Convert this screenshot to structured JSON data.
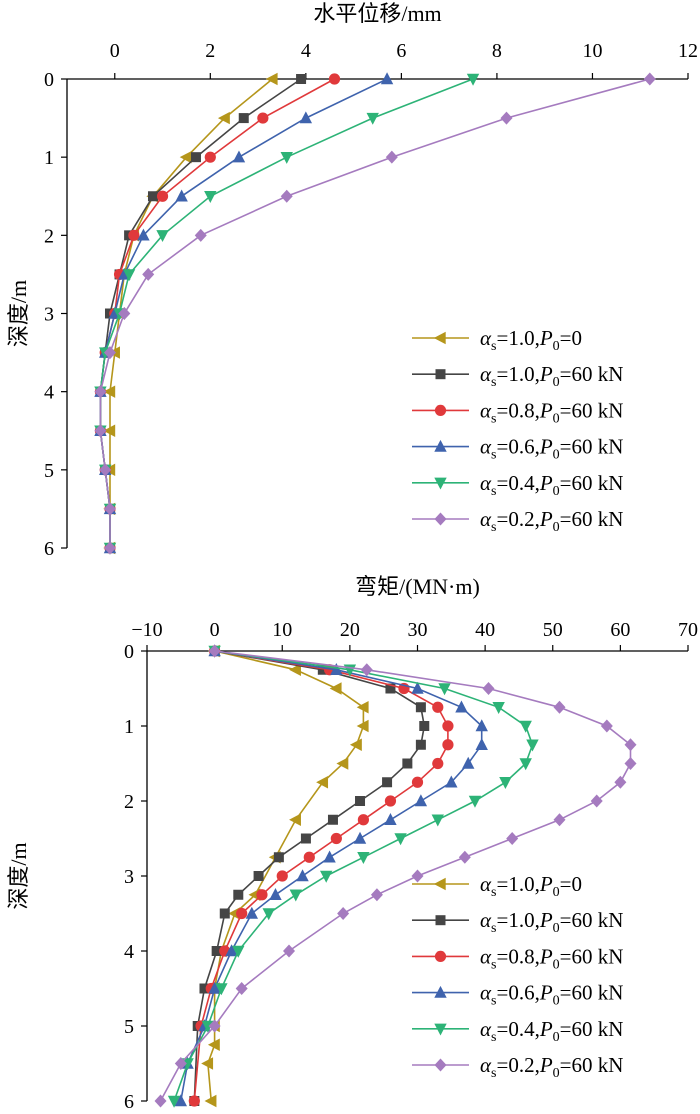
{
  "chart_data": [
    {
      "type": "line",
      "title": "水平位移/mm",
      "ylabel": "深度/m",
      "xlim": [
        -1,
        12
      ],
      "ylim": [
        6,
        0
      ],
      "y_inverted": true,
      "x_axis_position": "top",
      "xticks": [
        "0",
        "2",
        "4",
        "6",
        "8",
        "10",
        "12"
      ],
      "yticks": [
        "0",
        "1",
        "2",
        "3",
        "4",
        "5",
        "6"
      ],
      "legend_position": "bottom-right",
      "series": [
        {
          "name": "αs=1.0,P0=0",
          "name_parts": {
            "a": "α",
            "sa": "s",
            "mid": "=1.0,",
            "p": "P",
            "sp": "0",
            "tail": "=0"
          },
          "color": "#b5961b",
          "marker": "triangle-left",
          "x": [
            3.3,
            2.3,
            1.5,
            0.8,
            0.4,
            0.2,
            0.1,
            0.0,
            -0.1,
            -0.1,
            -0.1,
            -0.1,
            -0.1
          ],
          "y": [
            0,
            0.5,
            1.0,
            1.5,
            2.0,
            2.5,
            3.0,
            3.5,
            4.0,
            4.5,
            5.0,
            5.5,
            6.0
          ]
        },
        {
          "name": "αs=1.0,P0=60 kN",
          "name_parts": {
            "a": "α",
            "sa": "s",
            "mid": "=1.0,",
            "p": "P",
            "sp": "0",
            "tail": "=60 kN"
          },
          "color": "#454545",
          "marker": "square",
          "x": [
            3.9,
            2.7,
            1.7,
            0.8,
            0.3,
            0.1,
            -0.1,
            -0.2,
            -0.3,
            -0.3,
            -0.2,
            -0.1,
            -0.1
          ],
          "y": [
            0,
            0.5,
            1.0,
            1.5,
            2.0,
            2.5,
            3.0,
            3.5,
            4.0,
            4.5,
            5.0,
            5.5,
            6.0
          ]
        },
        {
          "name": "αs=0.8,P0=60 kN",
          "name_parts": {
            "a": "α",
            "sa": "s",
            "mid": "=0.8,",
            "p": "P",
            "sp": "0",
            "tail": "=60 kN"
          },
          "color": "#e0393b",
          "marker": "circle",
          "x": [
            4.6,
            3.1,
            2.0,
            1.0,
            0.4,
            0.1,
            0.0,
            -0.2,
            -0.3,
            -0.3,
            -0.2,
            -0.1,
            -0.1
          ],
          "y": [
            0,
            0.5,
            1.0,
            1.5,
            2.0,
            2.5,
            3.0,
            3.5,
            4.0,
            4.5,
            5.0,
            5.5,
            6.0
          ]
        },
        {
          "name": "αs=0.6,P0=60 kN",
          "name_parts": {
            "a": "α",
            "sa": "s",
            "mid": "=0.6,",
            "p": "P",
            "sp": "0",
            "tail": "=60 kN"
          },
          "color": "#3f63ad",
          "marker": "triangle-up",
          "x": [
            5.7,
            4.0,
            2.6,
            1.4,
            0.6,
            0.2,
            0.0,
            -0.2,
            -0.3,
            -0.3,
            -0.2,
            -0.1,
            -0.1
          ],
          "y": [
            0,
            0.5,
            1.0,
            1.5,
            2.0,
            2.5,
            3.0,
            3.5,
            4.0,
            4.5,
            5.0,
            5.5,
            6.0
          ]
        },
        {
          "name": "αs=0.4,P0=60 kN",
          "name_parts": {
            "a": "α",
            "sa": "s",
            "mid": "=0.4,",
            "p": "P",
            "sp": "0",
            "tail": "=60 kN"
          },
          "color": "#2db377",
          "marker": "triangle-down",
          "x": [
            7.5,
            5.4,
            3.6,
            2.0,
            1.0,
            0.3,
            0.1,
            -0.2,
            -0.3,
            -0.3,
            -0.2,
            -0.1,
            -0.1
          ],
          "y": [
            0,
            0.5,
            1.0,
            1.5,
            2.0,
            2.5,
            3.0,
            3.5,
            4.0,
            4.5,
            5.0,
            5.5,
            6.0
          ]
        },
        {
          "name": "αs=0.2,P0=60 kN",
          "name_parts": {
            "a": "α",
            "sa": "s",
            "mid": "=0.2,",
            "p": "P",
            "sp": "0",
            "tail": "=60 kN"
          },
          "color": "#a57bbf",
          "marker": "diamond",
          "x": [
            11.2,
            8.2,
            5.8,
            3.6,
            1.8,
            0.7,
            0.2,
            -0.1,
            -0.3,
            -0.3,
            -0.2,
            -0.1,
            -0.1
          ],
          "y": [
            0,
            0.5,
            1.0,
            1.5,
            2.0,
            2.5,
            3.0,
            3.5,
            4.0,
            4.5,
            5.0,
            5.5,
            6.0
          ]
        }
      ]
    },
    {
      "type": "line",
      "title": "弯矩/(MN·m)",
      "ylabel": "深度/m",
      "xlim": [
        -10,
        70
      ],
      "ylim": [
        6,
        0
      ],
      "y_inverted": true,
      "x_axis_position": "top",
      "xticks": [
        "−10",
        "0",
        "10",
        "20",
        "30",
        "40",
        "50",
        "60",
        "70"
      ],
      "yticks": [
        "0",
        "1",
        "2",
        "3",
        "4",
        "5",
        "6"
      ],
      "legend_position": "bottom-right",
      "series": [
        {
          "name": "αs=1.0,P0=0",
          "name_parts": {
            "a": "α",
            "sa": "s",
            "mid": "=1.0,",
            "p": "P",
            "sp": "0",
            "tail": "=0"
          },
          "color": "#b5961b",
          "marker": "triangle-left",
          "x": [
            0,
            12,
            18,
            22,
            22,
            21,
            19,
            16,
            12,
            9,
            6,
            3,
            1,
            0,
            0,
            0,
            -1,
            -0.5
          ],
          "y": [
            0,
            0.25,
            0.5,
            0.75,
            1.0,
            1.25,
            1.5,
            1.75,
            2.25,
            2.75,
            3.25,
            3.5,
            4.0,
            4.5,
            5.0,
            5.25,
            5.5,
            6.0
          ]
        },
        {
          "name": "αs=1.0,P0=60 kN",
          "name_parts": {
            "a": "α",
            "sa": "s",
            "mid": "=1.0,",
            "p": "P",
            "sp": "0",
            "tail": "=60 kN"
          },
          "color": "#454545",
          "marker": "square",
          "x": [
            0,
            16,
            26,
            30.5,
            31,
            30.5,
            28.5,
            25.5,
            21.5,
            17.5,
            13.5,
            9.5,
            6.5,
            3.5,
            1.5,
            0.3,
            -1.5,
            -2.5,
            -3
          ],
          "y": [
            0,
            0.25,
            0.5,
            0.75,
            1.0,
            1.25,
            1.5,
            1.75,
            2.0,
            2.25,
            2.5,
            2.75,
            3.0,
            3.25,
            3.5,
            4.0,
            4.5,
            5.0,
            6.0
          ]
        },
        {
          "name": "αs=0.8,P0=60 kN",
          "name_parts": {
            "a": "α",
            "sa": "s",
            "mid": "=0.8,",
            "p": "P",
            "sp": "0",
            "tail": "=60 kN"
          },
          "color": "#e0393b",
          "marker": "circle",
          "x": [
            0,
            17,
            28,
            33,
            34.5,
            34.5,
            33,
            30,
            26,
            22,
            18,
            14,
            10,
            7,
            4,
            1.5,
            -0.5,
            -2,
            -3
          ],
          "y": [
            0,
            0.25,
            0.5,
            0.75,
            1.0,
            1.25,
            1.5,
            1.75,
            2.0,
            2.25,
            2.5,
            2.75,
            3.0,
            3.25,
            3.5,
            4.0,
            4.5,
            5.0,
            6.0
          ]
        },
        {
          "name": "αs=0.6,P0=60 kN",
          "name_parts": {
            "a": "α",
            "sa": "s",
            "mid": "=0.6,",
            "p": "P",
            "sp": "0",
            "tail": "=60 kN"
          },
          "color": "#3f63ad",
          "marker": "triangle-up",
          "x": [
            0,
            18,
            30,
            36.5,
            39.5,
            39.5,
            37.5,
            35,
            30.5,
            26,
            21.5,
            17,
            13,
            9,
            5.5,
            2.5,
            0,
            -1.5,
            -4,
            -5
          ],
          "y": [
            0,
            0.25,
            0.5,
            0.75,
            1.0,
            1.25,
            1.5,
            1.75,
            2.0,
            2.25,
            2.5,
            2.75,
            3.0,
            3.25,
            3.5,
            4.0,
            4.5,
            5.0,
            5.5,
            6.0
          ]
        },
        {
          "name": "αs=0.4,P0=60 kN",
          "name_parts": {
            "a": "α",
            "sa": "s",
            "mid": "=0.4,",
            "p": "P",
            "sp": "0",
            "tail": "=60 kN"
          },
          "color": "#2db377",
          "marker": "triangle-down",
          "x": [
            0,
            20,
            34,
            42,
            46,
            47,
            46,
            43,
            38.5,
            33,
            27.5,
            22,
            16.5,
            12,
            8,
            3.5,
            1,
            -1,
            -4,
            -6
          ],
          "y": [
            0,
            0.25,
            0.5,
            0.75,
            1.0,
            1.25,
            1.5,
            1.75,
            2.0,
            2.25,
            2.5,
            2.75,
            3.0,
            3.25,
            3.5,
            4.0,
            4.5,
            5.0,
            5.5,
            6.0
          ]
        },
        {
          "name": "αs=0.2,P0=60 kN",
          "name_parts": {
            "a": "α",
            "sa": "s",
            "mid": "=0.2,",
            "p": "P",
            "sp": "0",
            "tail": "=60 kN"
          },
          "color": "#a57bbf",
          "marker": "diamond",
          "x": [
            0,
            22.5,
            40.5,
            51,
            58,
            61.5,
            61.5,
            60,
            56.5,
            51,
            44,
            37,
            30,
            24,
            19,
            11,
            4,
            0,
            -5,
            -8
          ],
          "y": [
            0,
            0.25,
            0.5,
            0.75,
            1.0,
            1.25,
            1.5,
            1.75,
            2.0,
            2.25,
            2.5,
            2.75,
            3.0,
            3.25,
            3.5,
            4.0,
            4.5,
            5.0,
            5.5,
            6.0
          ]
        }
      ]
    }
  ]
}
